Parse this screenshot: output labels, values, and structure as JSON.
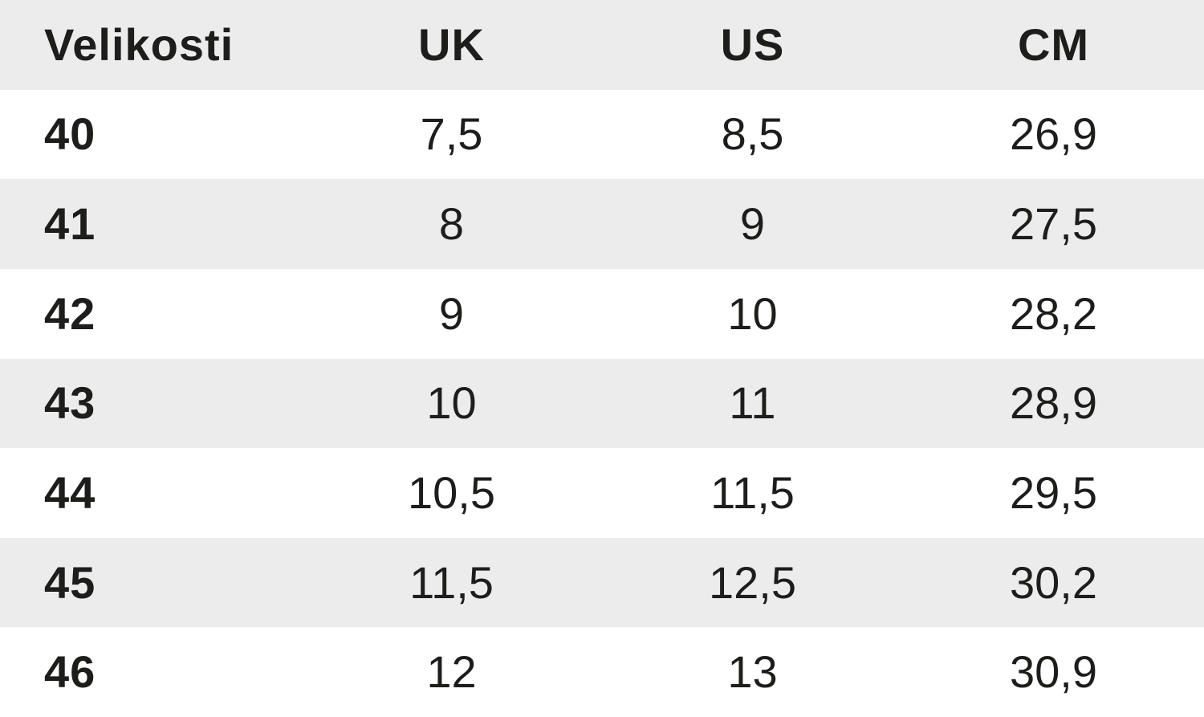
{
  "chart_data": {
    "type": "table",
    "columns": [
      "Velikosti",
      "UK",
      "US",
      "CM"
    ],
    "rows": [
      [
        "40",
        "7,5",
        "8,5",
        "26,9"
      ],
      [
        "41",
        "8",
        "9",
        "27,5"
      ],
      [
        "42",
        "9",
        "10",
        "28,2"
      ],
      [
        "43",
        "10",
        "11",
        "28,9"
      ],
      [
        "44",
        "10,5",
        "11,5",
        "29,5"
      ],
      [
        "45",
        "11,5",
        "12,5",
        "30,2"
      ],
      [
        "46",
        "12",
        "13",
        "30,9"
      ]
    ],
    "layout": {
      "striped": true,
      "stripe_order": "header-gray-then-alternating",
      "header_position": "top"
    }
  },
  "colors": {
    "stripe_gray": "#ececec",
    "background": "#ffffff",
    "text": "#1d1d1b"
  }
}
